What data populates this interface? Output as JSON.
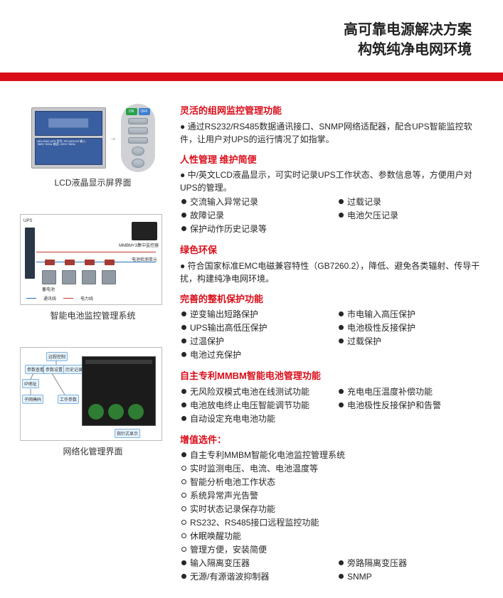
{
  "header": {
    "line1": "高可靠电源解决方案",
    "line2": "构筑纯净电网环境"
  },
  "colors": {
    "accent_red": "#d90e1a",
    "text": "#272727",
    "page_bg": "#ffffff"
  },
  "figures": {
    "lcd": {
      "caption": "LCD液晶显示屏界面",
      "panel_on": "ON",
      "panel_off": "OFF",
      "bottom_text": "KELONG UPS\n型号: FR-UK3120\n输入: 380V~50Hz\n输出: 220V~50Hz"
    },
    "battery": {
      "caption": "智能电池监控管理系统",
      "ups_label": "UPS",
      "mmbm_label": "MMBM+3集中监控器",
      "sensor_label": "电池检测单元",
      "battery_label": "蓄电池",
      "legend_comm": "通讯线",
      "legend_power": "电力线"
    },
    "net": {
      "caption": "网络化管理界面",
      "node_remote": "远程控制",
      "node_query": "参数查看",
      "node_set": "参数设置",
      "node_history": "历史记录",
      "node_ip": "IP地址",
      "node_sub": "子网掩码",
      "node_work": "工作参数",
      "pointer_label": "指针式显示"
    }
  },
  "sections": [
    {
      "title": "灵活的组网监控管理功能",
      "paras": [
        "● 通过RS232/RS485数据通讯接口、SNMP网络适配器，配合UPS智能监控软件，让用户对UPS的运行情况了如指掌。"
      ]
    },
    {
      "title": "人性管理  维护简便",
      "paras": [
        "● 中/英文LCD液晶显示，可实时记录UPS工作状态、参数信息等，方便用户对UPS的管理。"
      ],
      "bullets_two_col": [
        {
          "t": "交流输入异常记录",
          "m": "filled"
        },
        {
          "t": "过载记录",
          "m": "filled"
        },
        {
          "t": "故障记录",
          "m": "filled"
        },
        {
          "t": "电池欠压记录",
          "m": "filled"
        },
        {
          "t": "保护动作历史记录等",
          "m": "filled",
          "full": true
        }
      ]
    },
    {
      "title": "绿色环保",
      "paras": [
        "● 符合国家标准EMC电磁兼容特性（GB7260.2），降低、避免各类辐射、传导干扰，构建纯净电网环境。"
      ]
    },
    {
      "title": "完善的整机保护功能",
      "bullets_two_col": [
        {
          "t": "逆变输出短路保护",
          "m": "filled"
        },
        {
          "t": "市电输入高压保护",
          "m": "filled"
        },
        {
          "t": "UPS输出高低压保护",
          "m": "filled"
        },
        {
          "t": "电池极性反接保护",
          "m": "filled"
        },
        {
          "t": "过温保护",
          "m": "filled"
        },
        {
          "t": "过载保护",
          "m": "filled"
        },
        {
          "t": "电池过充保护",
          "m": "filled",
          "full": true
        }
      ]
    },
    {
      "title": "自主专利MMBM智能电池管理功能",
      "bullets_two_col": [
        {
          "t": "无风险双模式电池在线测试功能",
          "m": "filled"
        },
        {
          "t": "充电电压温度补偿功能",
          "m": "filled"
        },
        {
          "t": "电池放电终止电压智能调节功能",
          "m": "filled"
        },
        {
          "t": "电池极性反接保护和告警",
          "m": "filled"
        },
        {
          "t": "自动设定充电电池功能",
          "m": "filled",
          "full": true
        }
      ]
    },
    {
      "title": "增值选件：",
      "bullets_two_col": [
        {
          "t": "自主专利MMBM智能化电池监控管理系统",
          "m": "filled",
          "full": true
        },
        {
          "t": "实时监测电压、电流、电池温度等",
          "m": "open",
          "full": true
        },
        {
          "t": "智能分析电池工作状态",
          "m": "open",
          "full": true
        },
        {
          "t": "系统异常声光告警",
          "m": "open",
          "full": true
        },
        {
          "t": "实时状态记录保存功能",
          "m": "open",
          "full": true
        },
        {
          "t": "RS232、RS485接口远程监控功能",
          "m": "open",
          "full": true
        },
        {
          "t": "休眠唤醒功能",
          "m": "open",
          "full": true
        },
        {
          "t": "管理方便，安装简便",
          "m": "open",
          "full": true
        },
        {
          "t": "输入隔离变压器",
          "m": "filled"
        },
        {
          "t": "旁路隔离变压器",
          "m": "filled"
        },
        {
          "t": "无源/有源谐波抑制器",
          "m": "filled"
        },
        {
          "t": "SNMP",
          "m": "filled"
        }
      ]
    }
  ]
}
